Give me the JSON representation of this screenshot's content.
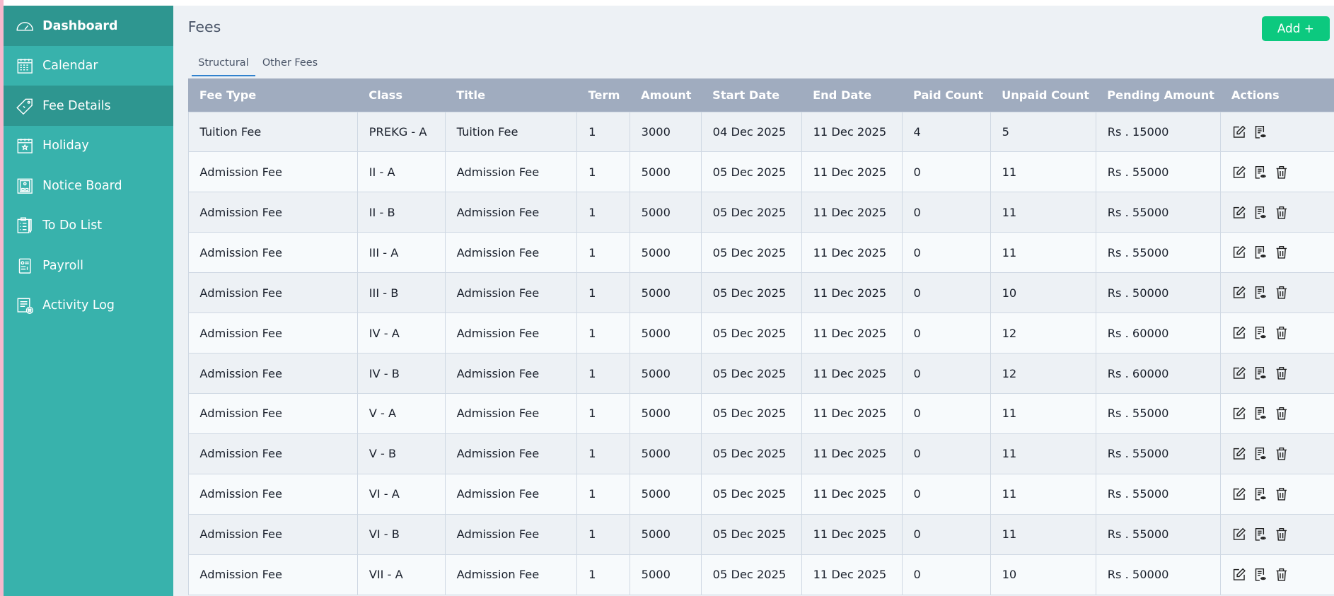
{
  "sidebar": {
    "items": [
      {
        "label": "Dashboard",
        "icon": "dashboard-gauge-icon"
      },
      {
        "label": "Calendar",
        "icon": "calendar-icon"
      },
      {
        "label": "Fee Details",
        "icon": "price-tag-icon"
      },
      {
        "label": "Holiday",
        "icon": "holiday-calendar-icon"
      },
      {
        "label": "Notice Board",
        "icon": "notice-board-icon"
      },
      {
        "label": "To Do List",
        "icon": "clipboard-list-icon"
      },
      {
        "label": "Payroll",
        "icon": "payroll-icon"
      },
      {
        "label": "Activity Log",
        "icon": "activity-log-icon"
      }
    ],
    "active": "Fee Details"
  },
  "page": {
    "title": "Fees",
    "add_label": "Add +"
  },
  "tabs": [
    {
      "label": "Structural",
      "active": true
    },
    {
      "label": "Other Fees",
      "active": false
    }
  ],
  "table": {
    "columns": [
      "Fee Type",
      "Class",
      "Title",
      "Term",
      "Amount",
      "Start Date",
      "End Date",
      "Paid Count",
      "Unpaid Count",
      "Pending Amount",
      "Actions"
    ],
    "rows": [
      [
        "Tuition Fee",
        "PREKG - A",
        "Tuition Fee",
        "1",
        "3000",
        "04 Dec 2025",
        "11 Dec 2025",
        "4",
        "5",
        "Rs . 15000"
      ],
      [
        "Admission Fee",
        "II - A",
        "Admission Fee",
        "1",
        "5000",
        "05 Dec 2025",
        "11 Dec 2025",
        "0",
        "11",
        "Rs . 55000"
      ],
      [
        "Admission Fee",
        "II - B",
        "Admission Fee",
        "1",
        "5000",
        "05 Dec 2025",
        "11 Dec 2025",
        "0",
        "11",
        "Rs . 55000"
      ],
      [
        "Admission Fee",
        "III - A",
        "Admission Fee",
        "1",
        "5000",
        "05 Dec 2025",
        "11 Dec 2025",
        "0",
        "11",
        "Rs . 55000"
      ],
      [
        "Admission Fee",
        "III - B",
        "Admission Fee",
        "1",
        "5000",
        "05 Dec 2025",
        "11 Dec 2025",
        "0",
        "10",
        "Rs . 50000"
      ],
      [
        "Admission Fee",
        "IV - A",
        "Admission Fee",
        "1",
        "5000",
        "05 Dec 2025",
        "11 Dec 2025",
        "0",
        "12",
        "Rs . 60000"
      ],
      [
        "Admission Fee",
        "IV - B",
        "Admission Fee",
        "1",
        "5000",
        "05 Dec 2025",
        "11 Dec 2025",
        "0",
        "12",
        "Rs . 60000"
      ],
      [
        "Admission Fee",
        "V - A",
        "Admission Fee",
        "1",
        "5000",
        "05 Dec 2025",
        "11 Dec 2025",
        "0",
        "11",
        "Rs . 55000"
      ],
      [
        "Admission Fee",
        "V - B",
        "Admission Fee",
        "1",
        "5000",
        "05 Dec 2025",
        "11 Dec 2025",
        "0",
        "11",
        "Rs . 55000"
      ],
      [
        "Admission Fee",
        "VI - A",
        "Admission Fee",
        "1",
        "5000",
        "05 Dec 2025",
        "11 Dec 2025",
        "0",
        "11",
        "Rs . 55000"
      ],
      [
        "Admission Fee",
        "VI - B",
        "Admission Fee",
        "1",
        "5000",
        "05 Dec 2025",
        "11 Dec 2025",
        "0",
        "11",
        "Rs . 55000"
      ],
      [
        "Admission Fee",
        "VII - A",
        "Admission Fee",
        "1",
        "5000",
        "05 Dec 2025",
        "11 Dec 2025",
        "0",
        "10",
        "Rs . 50000"
      ]
    ],
    "row_actions": [
      [
        "edit",
        "view"
      ],
      [
        "edit",
        "view",
        "delete"
      ],
      [
        "edit",
        "view",
        "delete"
      ],
      [
        "edit",
        "view",
        "delete"
      ],
      [
        "edit",
        "view",
        "delete"
      ],
      [
        "edit",
        "view",
        "delete"
      ],
      [
        "edit",
        "view",
        "delete"
      ],
      [
        "edit",
        "view",
        "delete"
      ],
      [
        "edit",
        "view",
        "delete"
      ],
      [
        "edit",
        "view",
        "delete"
      ],
      [
        "edit",
        "view",
        "delete"
      ],
      [
        "edit",
        "view",
        "delete"
      ]
    ]
  },
  "colors": {
    "sidebar": "#38b2ac",
    "sidebar_dark": "#2e9690",
    "add_button": "#0cc97f",
    "header": "#a0acbf",
    "tab_underline": "#3182ce"
  }
}
